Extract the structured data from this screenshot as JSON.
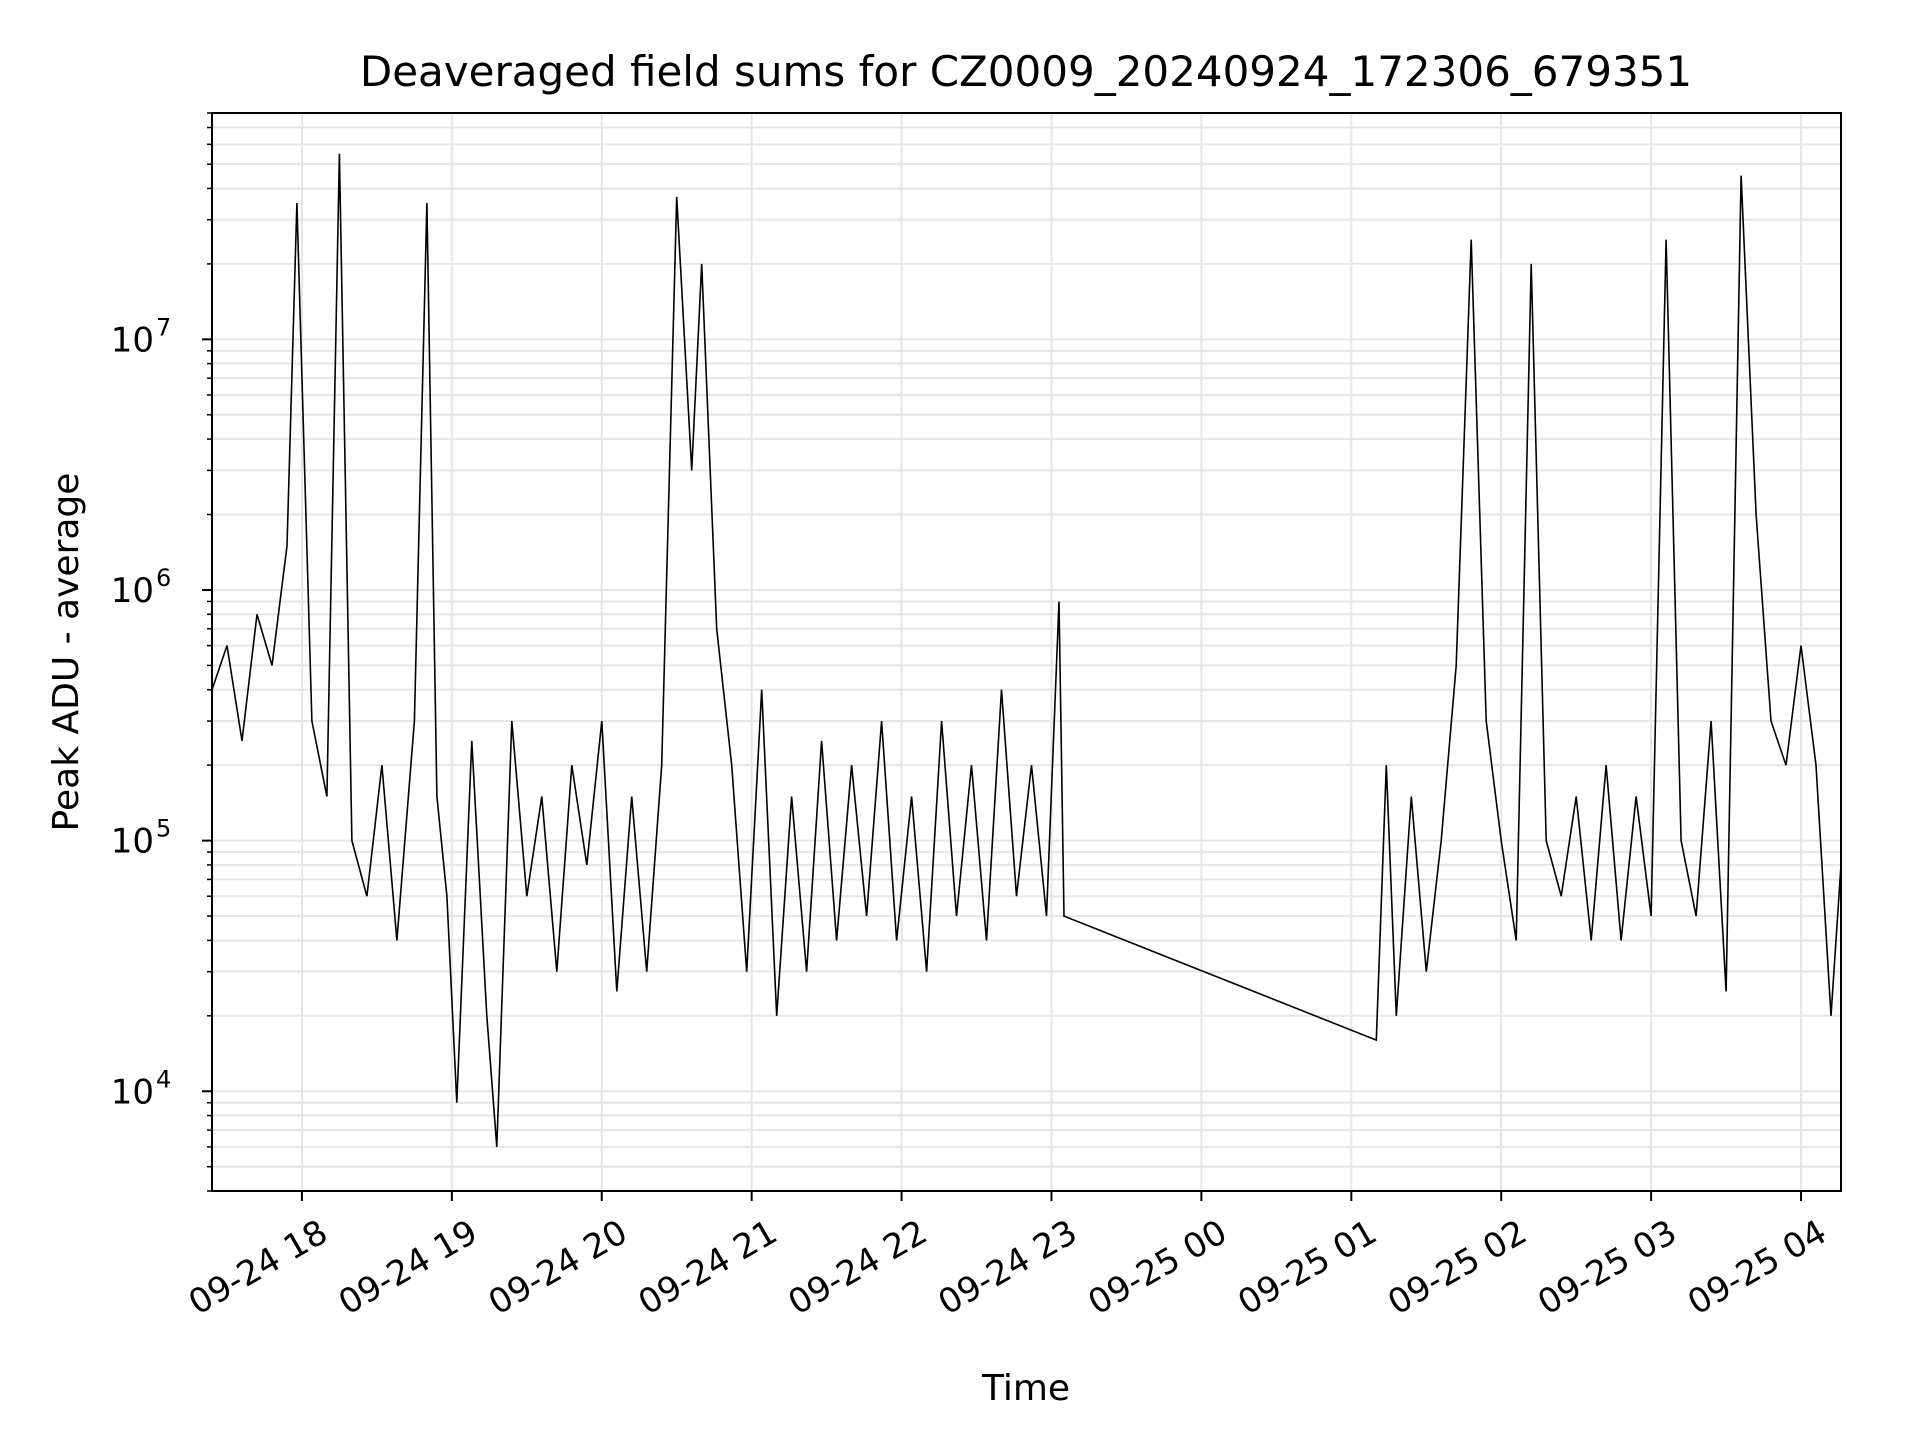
{
  "chart_data": {
    "type": "line",
    "title": "Deaveraged field sums for CZ0009_20240924_172306_679351",
    "xlabel": "Time",
    "ylabel": "Peak ADU - average",
    "y_scale": "log",
    "ylim": [
      4000,
      80000000
    ],
    "xlim": [
      "09-24 17:24",
      "09-25 04:16"
    ],
    "grid": true,
    "grid_color": "#e6e6e6",
    "line_color": "#000000",
    "x_tick_labels": [
      "09-24 18",
      "09-24 19",
      "09-24 20",
      "09-24 21",
      "09-24 22",
      "09-24 23",
      "09-25 00",
      "09-25 01",
      "09-25 02",
      "09-25 03",
      "09-25 04"
    ],
    "y_tick_labels": [
      {
        "value": 10000,
        "base": "10",
        "exp": "4"
      },
      {
        "value": 100000,
        "base": "10",
        "exp": "5"
      },
      {
        "value": 1000000,
        "base": "10",
        "exp": "6"
      },
      {
        "value": 10000000,
        "base": "10",
        "exp": "7"
      }
    ],
    "series": [
      {
        "values_note_free": true,
        "points": [
          [
            "09-24 17:24",
            400000
          ],
          [
            "09-24 17:30",
            600000
          ],
          [
            "09-24 17:36",
            250000
          ],
          [
            "09-24 17:42",
            800000
          ],
          [
            "09-24 17:48",
            500000
          ],
          [
            "09-24 17:54",
            1500000
          ],
          [
            "09-24 17:58",
            35000000
          ],
          [
            "09-24 18:04",
            300000
          ],
          [
            "09-24 18:10",
            150000
          ],
          [
            "09-24 18:15",
            55000000
          ],
          [
            "09-24 18:20",
            100000
          ],
          [
            "09-24 18:26",
            60000
          ],
          [
            "09-24 18:32",
            200000
          ],
          [
            "09-24 18:38",
            40000
          ],
          [
            "09-24 18:45",
            300000
          ],
          [
            "09-24 18:50",
            35000000
          ],
          [
            "09-24 18:54",
            150000
          ],
          [
            "09-24 18:58",
            60000
          ],
          [
            "09-24 19:02",
            9000
          ],
          [
            "09-24 19:08",
            250000
          ],
          [
            "09-24 19:14",
            20000
          ],
          [
            "09-24 19:18",
            6000
          ],
          [
            "09-24 19:24",
            300000
          ],
          [
            "09-24 19:30",
            60000
          ],
          [
            "09-24 19:36",
            150000
          ],
          [
            "09-24 19:42",
            30000
          ],
          [
            "09-24 19:48",
            200000
          ],
          [
            "09-24 19:54",
            80000
          ],
          [
            "09-24 20:00",
            300000
          ],
          [
            "09-24 20:06",
            25000
          ],
          [
            "09-24 20:12",
            150000
          ],
          [
            "09-24 20:18",
            30000
          ],
          [
            "09-24 20:24",
            200000
          ],
          [
            "09-24 20:30",
            37000000
          ],
          [
            "09-24 20:36",
            3000000
          ],
          [
            "09-24 20:40",
            20000000
          ],
          [
            "09-24 20:46",
            700000
          ],
          [
            "09-24 20:52",
            200000
          ],
          [
            "09-24 20:58",
            30000
          ],
          [
            "09-24 21:04",
            400000
          ],
          [
            "09-24 21:10",
            20000
          ],
          [
            "09-24 21:16",
            150000
          ],
          [
            "09-24 21:22",
            30000
          ],
          [
            "09-24 21:28",
            250000
          ],
          [
            "09-24 21:34",
            40000
          ],
          [
            "09-24 21:40",
            200000
          ],
          [
            "09-24 21:46",
            50000
          ],
          [
            "09-24 21:52",
            300000
          ],
          [
            "09-24 21:58",
            40000
          ],
          [
            "09-24 22:04",
            150000
          ],
          [
            "09-24 22:10",
            30000
          ],
          [
            "09-24 22:16",
            300000
          ],
          [
            "09-24 22:22",
            50000
          ],
          [
            "09-24 22:28",
            200000
          ],
          [
            "09-24 22:34",
            40000
          ],
          [
            "09-24 22:40",
            400000
          ],
          [
            "09-24 22:46",
            60000
          ],
          [
            "09-24 22:52",
            200000
          ],
          [
            "09-24 22:58",
            50000
          ],
          [
            "09-24 23:03",
            900000
          ],
          [
            "09-24 23:05",
            50000
          ],
          [
            "09-25 01:10",
            16000
          ],
          [
            "09-25 01:14",
            200000
          ],
          [
            "09-25 01:18",
            20000
          ],
          [
            "09-25 01:24",
            150000
          ],
          [
            "09-25 01:30",
            30000
          ],
          [
            "09-25 01:36",
            100000
          ],
          [
            "09-25 01:42",
            500000
          ],
          [
            "09-25 01:48",
            25000000
          ],
          [
            "09-25 01:54",
            300000
          ],
          [
            "09-25 02:00",
            100000
          ],
          [
            "09-25 02:06",
            40000
          ],
          [
            "09-25 02:12",
            20000000
          ],
          [
            "09-25 02:18",
            100000
          ],
          [
            "09-25 02:24",
            60000
          ],
          [
            "09-25 02:30",
            150000
          ],
          [
            "09-25 02:36",
            40000
          ],
          [
            "09-25 02:42",
            200000
          ],
          [
            "09-25 02:48",
            40000
          ],
          [
            "09-25 02:54",
            150000
          ],
          [
            "09-25 03:00",
            50000
          ],
          [
            "09-25 03:06",
            25000000
          ],
          [
            "09-25 03:12",
            100000
          ],
          [
            "09-25 03:18",
            50000
          ],
          [
            "09-25 03:24",
            300000
          ],
          [
            "09-25 03:30",
            25000
          ],
          [
            "09-25 03:36",
            45000000
          ],
          [
            "09-25 03:42",
            2000000
          ],
          [
            "09-25 03:48",
            300000
          ],
          [
            "09-25 03:54",
            200000
          ],
          [
            "09-25 04:00",
            600000
          ],
          [
            "09-25 04:06",
            200000
          ],
          [
            "09-25 04:12",
            20000
          ],
          [
            "09-25 04:16",
            80000
          ]
        ]
      }
    ]
  }
}
